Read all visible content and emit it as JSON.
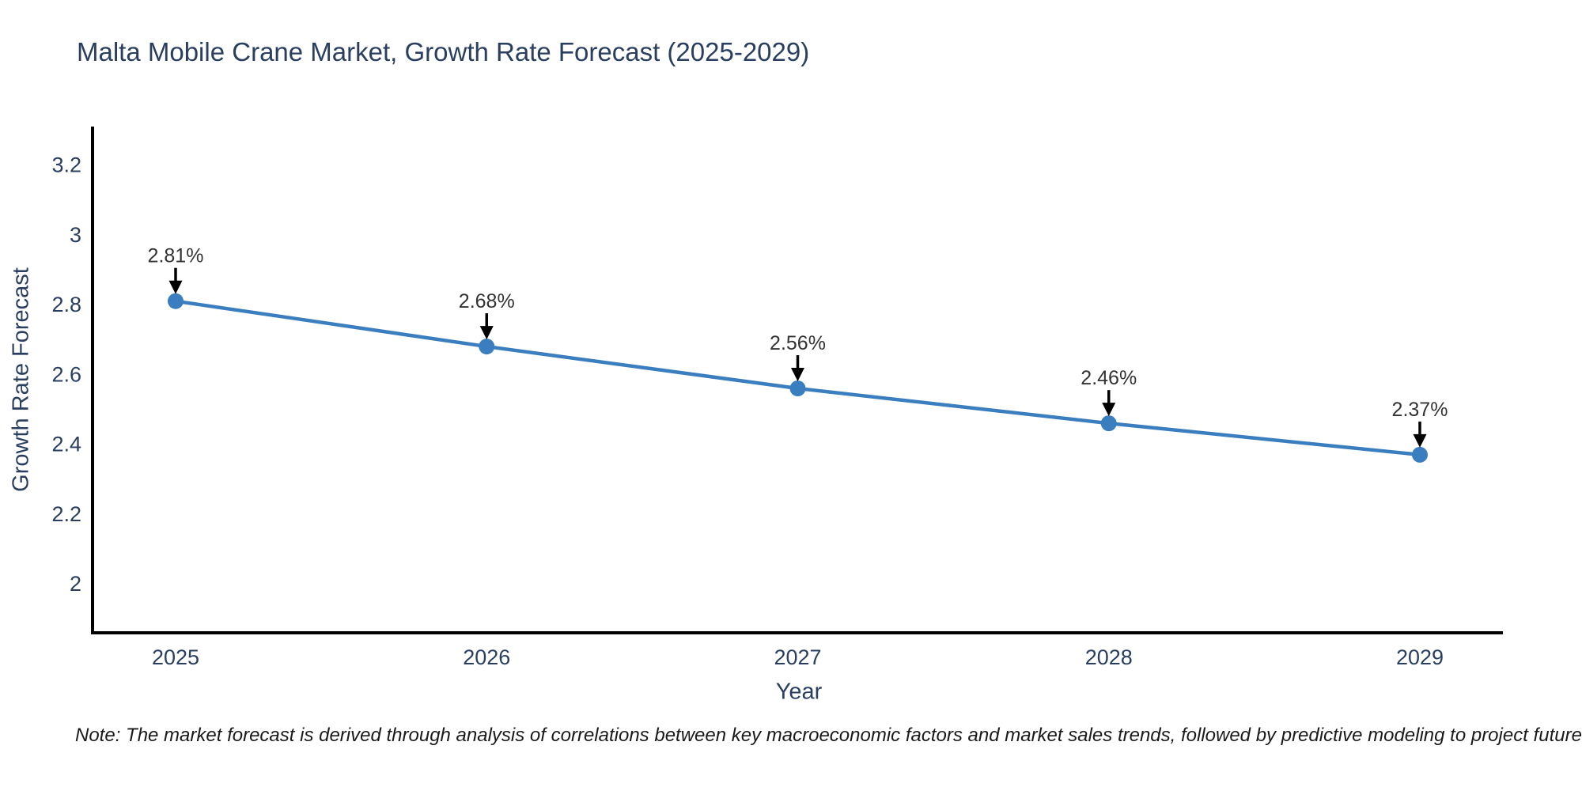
{
  "page": {
    "background": "#ffffff"
  },
  "chart_data": {
    "type": "line",
    "title": "Malta Mobile Crane Market, Growth Rate Forecast (2025-2029)",
    "xlabel": "Year",
    "ylabel": "Growth Rate Forecast",
    "categories": [
      "2025",
      "2026",
      "2027",
      "2028",
      "2029"
    ],
    "series": [
      {
        "name": "Growth Rate Forecast",
        "values": [
          2.81,
          2.68,
          2.56,
          2.46,
          2.37
        ],
        "point_labels": [
          "2.81%",
          "2.68%",
          "2.56%",
          "2.46%",
          "2.37%"
        ]
      }
    ],
    "yticks": [
      2,
      2.2,
      2.4,
      2.6,
      2.8,
      3,
      3.2
    ],
    "ytick_labels": [
      "2",
      "2.2",
      "2.4",
      "2.6",
      "2.8",
      "3",
      "3.2"
    ],
    "ylim": [
      1.86,
      3.31
    ],
    "grid": false,
    "legend_position": "none",
    "line_color": "#3a7ebf",
    "marker_color": "#3a7ebf",
    "axis_color": "#000000",
    "text_color": "#2a3f5f",
    "annotation_color": "#333333",
    "annotation_arrow_color": "#000000"
  },
  "note": {
    "text": "Note: The market forecast is derived through analysis of correlations between key macroeconomic factors and market sales trends, followed by predictive modeling to project future sales"
  }
}
